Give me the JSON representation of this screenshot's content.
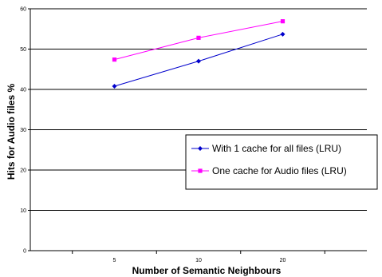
{
  "chart_data": {
    "type": "line",
    "categories": [
      "5",
      "10",
      "20"
    ],
    "series": [
      {
        "name": "With 1 cache for all files (LRU)",
        "values": [
          40.8,
          47.0,
          53.7
        ],
        "color": "#0000cc",
        "marker": "diamond"
      },
      {
        "name": "One cache for Audio files (LRU)",
        "values": [
          47.4,
          52.8,
          56.9
        ],
        "color": "#ff00ff",
        "marker": "square"
      }
    ],
    "xlabel": "Number of Semantic Neighbours",
    "ylabel": "Hits for Audio files %",
    "ylim": [
      0,
      60
    ],
    "yticks": [
      "0",
      "10",
      "20",
      "30",
      "40",
      "50",
      "60"
    ],
    "grid": "horizontal",
    "legend_position": "right"
  }
}
